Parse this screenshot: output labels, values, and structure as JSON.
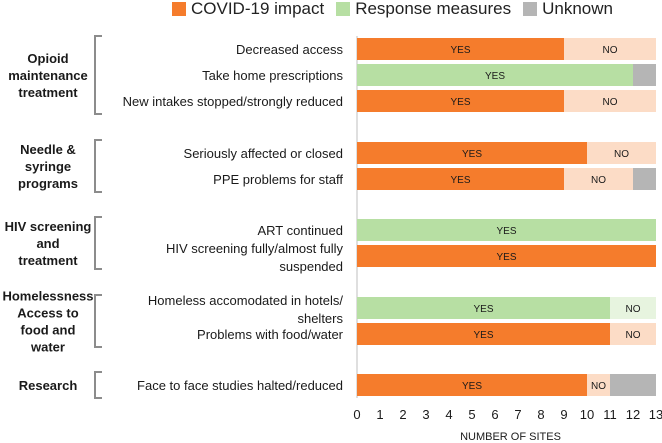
{
  "chart_data": {
    "type": "bar",
    "orientation": "horizontal",
    "stacked": true,
    "legend": [
      {
        "key": "impact",
        "label": "COVID-19 impact",
        "color": "#f57c2c"
      },
      {
        "key": "response",
        "label": "Response measures",
        "color": "#b7dfa3"
      },
      {
        "key": "unknown",
        "label": "Unknown",
        "color": "#b5b5b5"
      }
    ],
    "no_colors": {
      "impact": "#fcdcc6",
      "response": "#e7f4df"
    },
    "xlabel": "NUMBER OF SITES",
    "xlim": [
      0,
      13
    ],
    "xticks": [
      "0",
      "1",
      "2",
      "3",
      "4",
      "5",
      "6",
      "7",
      "8",
      "9",
      "10",
      "11",
      "12",
      "13"
    ],
    "groups": [
      {
        "label": [
          "Opioid",
          "maintenance",
          "treatment"
        ],
        "rows": [
          {
            "lines": [
              "Decreased access"
            ],
            "category": "impact",
            "yes": 9,
            "no": 4,
            "unknown": 0
          },
          {
            "lines": [
              "Take home prescriptions"
            ],
            "category": "response",
            "yes": 12,
            "no": 0,
            "unknown": 1
          },
          {
            "lines": [
              "New intakes stopped/strongly reduced"
            ],
            "category": "impact",
            "yes": 9,
            "no": 4,
            "unknown": 0
          }
        ]
      },
      {
        "label": [
          "Needle &",
          "syringe",
          "programs"
        ],
        "rows": [
          {
            "lines": [
              "Seriously affected or closed"
            ],
            "category": "impact",
            "yes": 10,
            "no": 3,
            "unknown": 0
          },
          {
            "lines": [
              "PPE problems for staff"
            ],
            "category": "impact",
            "yes": 9,
            "no": 3,
            "unknown": 1
          }
        ]
      },
      {
        "label": [
          "HIV screening",
          "and",
          "treatment"
        ],
        "rows": [
          {
            "lines": [
              "ART continued"
            ],
            "category": "response",
            "yes": 13,
            "no": 0,
            "unknown": 0
          },
          {
            "lines": [
              "HIV screening fully/almost fully",
              "suspended"
            ],
            "category": "impact",
            "yes": 13,
            "no": 0,
            "unknown": 0
          }
        ]
      },
      {
        "label": [
          "Homelessness",
          "Access to",
          "food and",
          "water"
        ],
        "rows": [
          {
            "lines": [
              "Homeless accomodated in hotels/",
              "shelters"
            ],
            "category": "response",
            "yes": 11,
            "no": 2,
            "unknown": 0
          },
          {
            "lines": [
              "Problems with food/water"
            ],
            "category": "impact",
            "yes": 11,
            "no": 2,
            "unknown": 0
          }
        ]
      },
      {
        "label": [
          "Research"
        ],
        "rows": [
          {
            "lines": [
              "Face to face studies halted/reduced"
            ],
            "category": "impact",
            "yes": 10,
            "no": 1,
            "unknown": 2
          }
        ]
      }
    ],
    "segment_labels": {
      "yes": "YES",
      "no": "NO"
    }
  }
}
